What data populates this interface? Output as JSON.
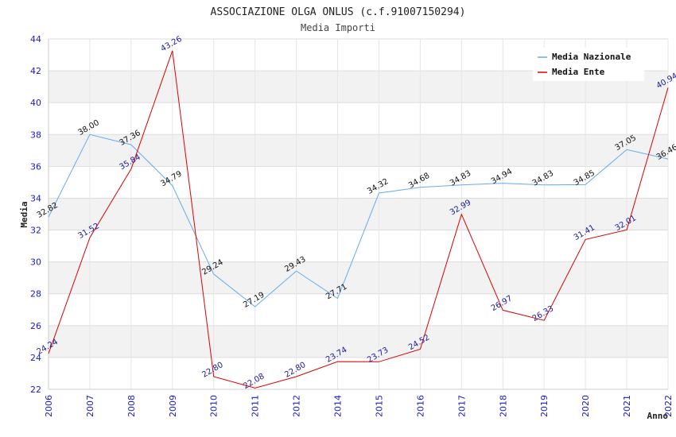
{
  "chart_data": {
    "type": "line",
    "title": "ASSOCIAZIONE OLGA ONLUS (c.f.91007150294)",
    "subtitle": "Media Importi",
    "xlabel": "Anno",
    "ylabel": "Media",
    "ylim": [
      22,
      44
    ],
    "yticks": [
      "22",
      "24",
      "26",
      "28",
      "30",
      "32",
      "34",
      "36",
      "38",
      "40",
      "42",
      "44"
    ],
    "categories": [
      "2006",
      "2007",
      "2008",
      "2009",
      "2010",
      "2011",
      "2012",
      "2014",
      "2015",
      "2016",
      "2017",
      "2018",
      "2019",
      "2020",
      "2021",
      "2022"
    ],
    "grid": "horizontal bands",
    "legend_position": "top-right",
    "series": [
      {
        "name": "Media Nazionale",
        "color": "#66aaee",
        "values": [
          32.82,
          38.0,
          37.36,
          34.79,
          29.24,
          27.19,
          29.43,
          27.71,
          34.32,
          34.68,
          34.83,
          34.94,
          34.83,
          34.85,
          37.05,
          36.46
        ],
        "labels": [
          "32.82",
          "38.00",
          "37.36",
          "34.79",
          "29.24",
          "27.19",
          "29.43",
          "27.71",
          "34.32",
          "34.68",
          "34.83",
          "34.94",
          "34.83",
          "34.85",
          "37.05",
          "36.46"
        ]
      },
      {
        "name": "Media Ente",
        "color": "#dd0000",
        "values": [
          24.24,
          31.52,
          35.84,
          43.26,
          22.8,
          22.08,
          22.8,
          23.74,
          23.73,
          24.52,
          32.99,
          26.97,
          26.33,
          31.41,
          32.01,
          40.94
        ],
        "labels": [
          "24.24",
          "31.52",
          "35.84",
          "43.26",
          "22.80",
          "22.08",
          "22.80",
          "23.74",
          "23.73",
          "24.52",
          "32.99",
          "26.97",
          "26.33",
          "31.41",
          "32.01",
          "40.94"
        ]
      }
    ]
  }
}
